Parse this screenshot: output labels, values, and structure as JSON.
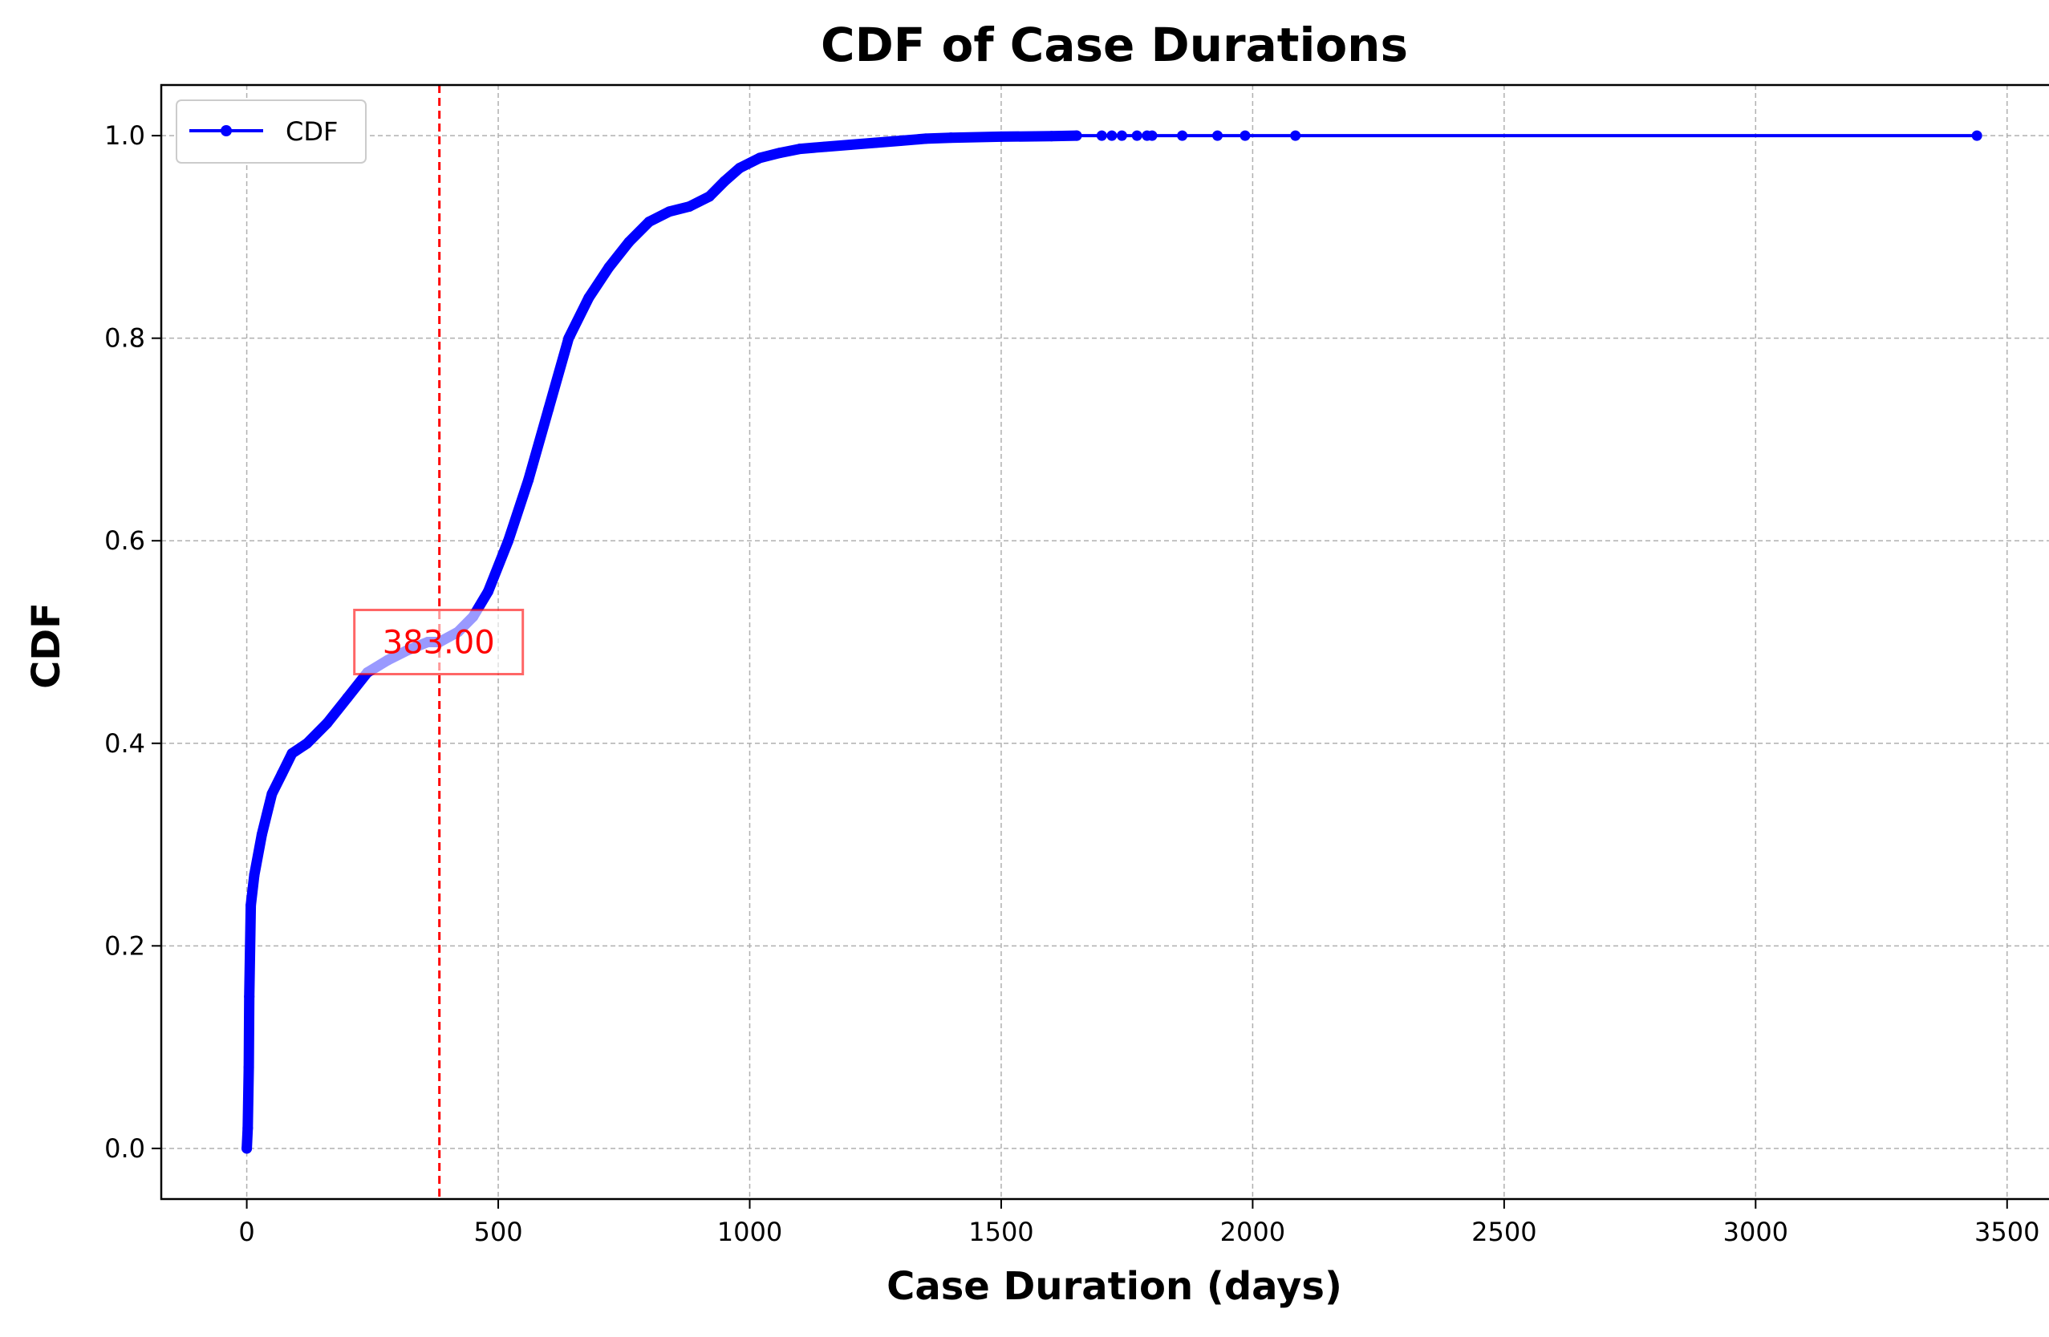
{
  "chart_data": {
    "type": "line",
    "title": "CDF of Case Durations",
    "xlabel": "Case Duration (days)",
    "ylabel": "CDF",
    "xlim": [
      -170,
      3620
    ],
    "ylim": [
      -0.05,
      1.05
    ],
    "xticks": [
      0,
      500,
      1000,
      1500,
      2000,
      2500,
      3000,
      3500
    ],
    "xtick_labels": [
      "0",
      "500",
      "1000",
      "1500",
      "2000",
      "2500",
      "3000",
      "3500"
    ],
    "yticks": [
      0.0,
      0.2,
      0.4,
      0.6,
      0.8,
      1.0
    ],
    "ytick_labels": [
      "0.0",
      "0.2",
      "0.4",
      "0.6",
      "0.8",
      "1.0"
    ],
    "grid": true,
    "legend": {
      "position": "upper-left",
      "entries": [
        "CDF"
      ]
    },
    "colors": {
      "series": "#0000ff",
      "median": "#ff0000",
      "grid": "#b0b0b0"
    },
    "series": [
      {
        "name": "CDF",
        "x": [
          0,
          2,
          4,
          5,
          8,
          15,
          30,
          50,
          70,
          90,
          120,
          160,
          200,
          240,
          280,
          320,
          360,
          383,
          420,
          450,
          480,
          520,
          560,
          600,
          640,
          680,
          720,
          760,
          800,
          840,
          880,
          920,
          950,
          980,
          1020,
          1060,
          1100,
          1150,
          1200,
          1250,
          1300,
          1350,
          1400,
          1500,
          1600,
          1650,
          1700,
          1720,
          1740,
          1770,
          1790,
          1800,
          1860,
          1930,
          1985,
          2085,
          3440
        ],
        "y": [
          0.0,
          0.02,
          0.08,
          0.15,
          0.24,
          0.27,
          0.31,
          0.35,
          0.37,
          0.39,
          0.4,
          0.42,
          0.445,
          0.47,
          0.482,
          0.492,
          0.5,
          0.5,
          0.51,
          0.525,
          0.55,
          0.6,
          0.66,
          0.73,
          0.8,
          0.84,
          0.87,
          0.895,
          0.915,
          0.925,
          0.93,
          0.94,
          0.955,
          0.968,
          0.978,
          0.983,
          0.987,
          0.989,
          0.991,
          0.993,
          0.995,
          0.997,
          0.998,
          0.999,
          0.9995,
          1.0,
          1.0,
          1.0,
          1.0,
          1.0,
          1.0,
          1.0,
          1.0,
          1.0,
          1.0,
          1.0,
          1.0
        ]
      }
    ],
    "median": {
      "x": 383,
      "y": 0.5,
      "label": "383.00"
    }
  }
}
